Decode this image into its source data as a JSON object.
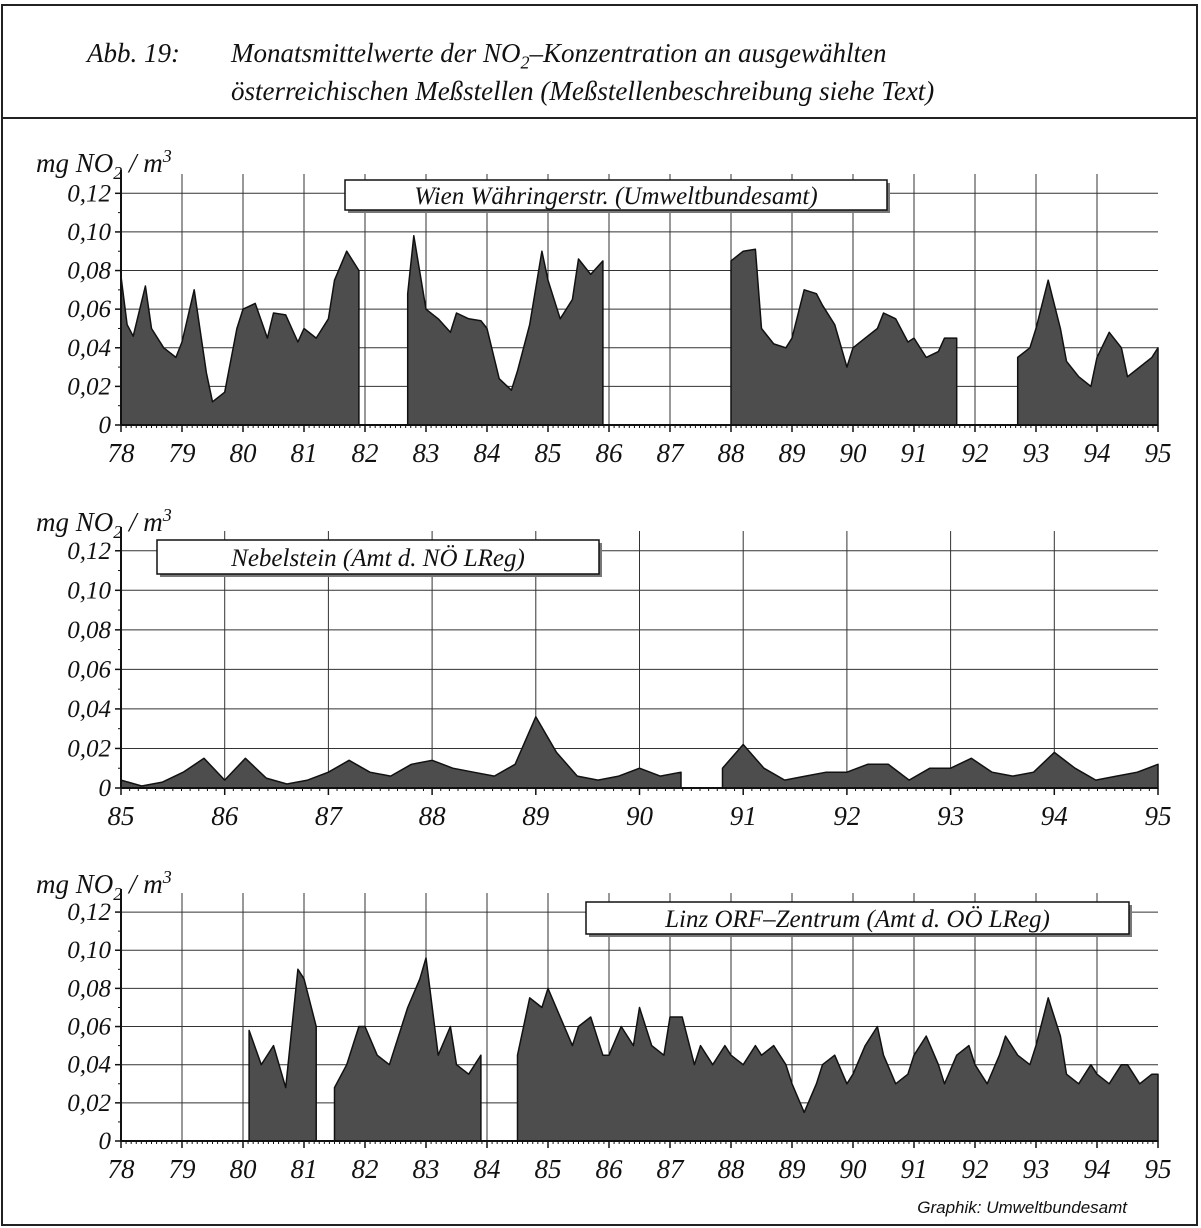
{
  "caption": {
    "label": "Abb. 19:",
    "line1": "Monatsmittelwerte der NO",
    "line1_sub": "2",
    "line1_rest": "–Konzentration an ausgewählten",
    "line2": "österreichischen Meßstellen (Meßstellenbeschreibung siehe Text)"
  },
  "credit": "Graphik: Umweltbundesamt",
  "colors": {
    "fill": "#4d4d4d",
    "line": "#111111",
    "grid": "#333333",
    "background": "#ffffff"
  },
  "chart_data": [
    {
      "type": "area",
      "title": "Wien Währingerstr. (Umweltbundesamt)",
      "legend_position": "top-center",
      "ylabel": "mg NO2 / m3",
      "ylabel_parts": {
        "pre": "mg NO",
        "sub": "2",
        "mid": " / m",
        "sup": "3"
      },
      "yticks": [
        "0",
        "0,02",
        "0,04",
        "0,06",
        "0,08",
        "0,10",
        "0,12"
      ],
      "ylim": [
        0,
        0.13
      ],
      "xlim": [
        78,
        95
      ],
      "xticks": [
        "78",
        "79",
        "80",
        "81",
        "82",
        "83",
        "84",
        "85",
        "86",
        "87",
        "88",
        "89",
        "90",
        "91",
        "92",
        "93",
        "94",
        "95"
      ],
      "grid": true,
      "x": [
        "78.0",
        "78.1",
        "78.2",
        "78.4",
        "78.5",
        "78.7",
        "78.9",
        "79.0",
        "79.2",
        "79.4",
        "79.5",
        "79.7",
        "79.9",
        "80.0",
        "80.2",
        "80.4",
        "80.5",
        "80.7",
        "80.9",
        "81.0",
        "81.2",
        "81.4",
        "81.5",
        "81.7",
        "81.9",
        "82.0",
        "82.7",
        "82.8",
        "83.0",
        "83.2",
        "83.4",
        "83.5",
        "83.7",
        "83.9",
        "84.0",
        "84.2",
        "84.4",
        "84.5",
        "84.7",
        "84.9",
        "85.0",
        "85.2",
        "85.4",
        "85.5",
        "85.7",
        "85.9",
        "86.0",
        "87.3",
        "87.5",
        "87.7",
        "87.9",
        "88.0",
        "88.2",
        "88.4",
        "88.5",
        "88.7",
        "88.9",
        "89.0",
        "89.2",
        "89.4",
        "89.5",
        "89.7",
        "89.9",
        "90.0",
        "90.2",
        "90.4",
        "90.5",
        "90.7",
        "90.9",
        "91.0",
        "91.2",
        "91.4",
        "91.5",
        "91.7",
        "91.9",
        "92.0",
        "92.2",
        "92.4",
        "92.5",
        "92.7",
        "92.9",
        "93.0",
        "93.2",
        "93.4",
        "93.5",
        "93.7",
        "93.9",
        "94.0",
        "94.2",
        "94.4",
        "94.5",
        "94.7",
        "94.9",
        "95.0"
      ],
      "series": [
        {
          "values": [
            0.077,
            0.052,
            0.046,
            0.072,
            0.05,
            0.04,
            0.035,
            0.043,
            0.07,
            0.027,
            0.012,
            0.017,
            0.05,
            0.06,
            0.063,
            0.045,
            0.058,
            0.057,
            0.043,
            0.05,
            0.045,
            0.055,
            0.075,
            0.09,
            0.08,
            null,
            0.068,
            0.098,
            0.06,
            0.055,
            0.048,
            0.058,
            0.055,
            0.054,
            0.05,
            0.024,
            0.018,
            0.028,
            0.052,
            0.09,
            0.075,
            0.055,
            0.065,
            0.086,
            0.078,
            0.085,
            null,
            null,
            null,
            null,
            null,
            0.085,
            0.09,
            0.091,
            0.05,
            0.042,
            0.04,
            0.045,
            0.07,
            0.068,
            0.062,
            0.052,
            0.03,
            0.04,
            0.045,
            0.05,
            0.058,
            0.055,
            0.043,
            0.045,
            0.035,
            0.038,
            0.045,
            0.045,
            null,
            null,
            null,
            null,
            null,
            0.035,
            0.04,
            0.05,
            0.075,
            0.05,
            0.033,
            0.025,
            0.02,
            0.035,
            0.048,
            0.04,
            0.025,
            0.03,
            0.035,
            0.04
          ]
        }
      ]
    },
    {
      "type": "area",
      "title": "Nebelstein (Amt d. NÖ LReg)",
      "legend_position": "top-left",
      "ylabel": "mg NO2 / m3",
      "ylabel_parts": {
        "pre": "mg NO",
        "sub": "2",
        "mid": " / m",
        "sup": "3"
      },
      "yticks": [
        "0",
        "0,02",
        "0,04",
        "0,06",
        "0,08",
        "0,10",
        "0,12"
      ],
      "ylim": [
        0,
        0.13
      ],
      "xlim": [
        85,
        95
      ],
      "xticks": [
        "85",
        "86",
        "87",
        "88",
        "89",
        "90",
        "91",
        "92",
        "93",
        "94",
        "95"
      ],
      "grid": true,
      "x": [
        "85.0",
        "85.2",
        "85.4",
        "85.6",
        "85.8",
        "86.0",
        "86.2",
        "86.4",
        "86.6",
        "86.8",
        "87.0",
        "87.2",
        "87.4",
        "87.6",
        "87.8",
        "88.0",
        "88.2",
        "88.4",
        "88.6",
        "88.8",
        "89.0",
        "89.2",
        "89.4",
        "89.6",
        "89.8",
        "90.0",
        "90.2",
        "90.4",
        "90.6",
        "90.8",
        "91.0",
        "91.2",
        "91.4",
        "91.6",
        "91.8",
        "92.0",
        "92.2",
        "92.4",
        "92.6",
        "92.8",
        "93.0",
        "93.2",
        "93.4",
        "93.6",
        "93.8",
        "94.0",
        "94.2",
        "94.4",
        "94.6",
        "94.8",
        "95.0"
      ],
      "series": [
        {
          "values": [
            0.004,
            0.001,
            0.003,
            0.008,
            0.015,
            0.004,
            0.015,
            0.005,
            0.002,
            0.004,
            0.008,
            0.014,
            0.008,
            0.006,
            0.012,
            0.014,
            0.01,
            0.008,
            0.006,
            0.012,
            0.036,
            0.018,
            0.006,
            0.004,
            0.006,
            0.01,
            0.006,
            0.008,
            null,
            0.01,
            0.022,
            0.01,
            0.004,
            0.006,
            0.008,
            0.008,
            0.012,
            0.012,
            0.004,
            0.01,
            0.01,
            0.015,
            0.008,
            0.006,
            0.008,
            0.018,
            0.01,
            0.004,
            0.006,
            0.008,
            0.012
          ]
        }
      ]
    },
    {
      "type": "area",
      "title": "Linz ORF–Zentrum (Amt d. OÖ LReg)",
      "legend_position": "top-right",
      "ylabel": "mg NO2 / m3",
      "ylabel_parts": {
        "pre": "mg NO",
        "sub": "2",
        "mid": " / m",
        "sup": "3"
      },
      "yticks": [
        "0",
        "0,02",
        "0,04",
        "0,06",
        "0,08",
        "0,10",
        "0,12"
      ],
      "ylim": [
        0,
        0.13
      ],
      "xlim": [
        78,
        95
      ],
      "xticks": [
        "78",
        "79",
        "80",
        "81",
        "82",
        "83",
        "84",
        "85",
        "86",
        "87",
        "88",
        "89",
        "90",
        "91",
        "92",
        "93",
        "94",
        "95"
      ],
      "grid": true,
      "x": [
        "80.1",
        "80.3",
        "80.5",
        "80.7",
        "80.9",
        "81.0",
        "81.2",
        "81.4",
        "81.5",
        "81.7",
        "81.9",
        "82.0",
        "82.2",
        "82.4",
        "82.5",
        "82.7",
        "82.9",
        "83.0",
        "83.2",
        "83.4",
        "83.5",
        "83.7",
        "83.9",
        "84.0",
        "84.2",
        "84.4",
        "84.5",
        "84.7",
        "84.9",
        "85.0",
        "85.2",
        "85.4",
        "85.5",
        "85.7",
        "85.9",
        "86.0",
        "86.2",
        "86.4",
        "86.5",
        "86.7",
        "86.9",
        "87.0",
        "87.2",
        "87.4",
        "87.5",
        "87.7",
        "87.9",
        "88.0",
        "88.2",
        "88.4",
        "88.5",
        "88.7",
        "88.9",
        "89.0",
        "89.2",
        "89.4",
        "89.5",
        "89.7",
        "89.9",
        "90.0",
        "90.2",
        "90.4",
        "90.5",
        "90.7",
        "90.9",
        "91.0",
        "91.2",
        "91.4",
        "91.5",
        "91.7",
        "91.9",
        "92.0",
        "92.2",
        "92.4",
        "92.5",
        "92.7",
        "92.9",
        "93.0",
        "93.2",
        "93.4",
        "93.5",
        "93.7",
        "93.9",
        "94.0",
        "94.2",
        "94.4",
        "94.5",
        "94.7",
        "94.9",
        "95.0"
      ],
      "series": [
        {
          "values": [
            0.058,
            0.04,
            0.05,
            0.028,
            0.09,
            0.085,
            0.06,
            null,
            0.028,
            0.04,
            0.06,
            0.06,
            0.045,
            0.04,
            0.05,
            0.07,
            0.085,
            0.096,
            0.045,
            0.06,
            0.04,
            0.035,
            0.045,
            null,
            null,
            null,
            0.045,
            0.075,
            0.07,
            0.08,
            0.065,
            0.05,
            0.06,
            0.065,
            0.045,
            0.045,
            0.06,
            0.05,
            0.07,
            0.05,
            0.045,
            0.065,
            0.065,
            0.04,
            0.05,
            0.04,
            0.05,
            0.045,
            0.04,
            0.05,
            0.045,
            0.05,
            0.04,
            0.03,
            0.015,
            0.03,
            0.04,
            0.045,
            0.03,
            0.035,
            0.05,
            0.06,
            0.045,
            0.03,
            0.035,
            0.045,
            0.055,
            0.04,
            0.03,
            0.045,
            0.05,
            0.04,
            0.03,
            0.045,
            0.055,
            0.045,
            0.04,
            0.05,
            0.075,
            0.055,
            0.035,
            0.03,
            0.04,
            0.035,
            0.03,
            0.04,
            0.04,
            0.03,
            0.035,
            0.035
          ]
        }
      ]
    }
  ]
}
